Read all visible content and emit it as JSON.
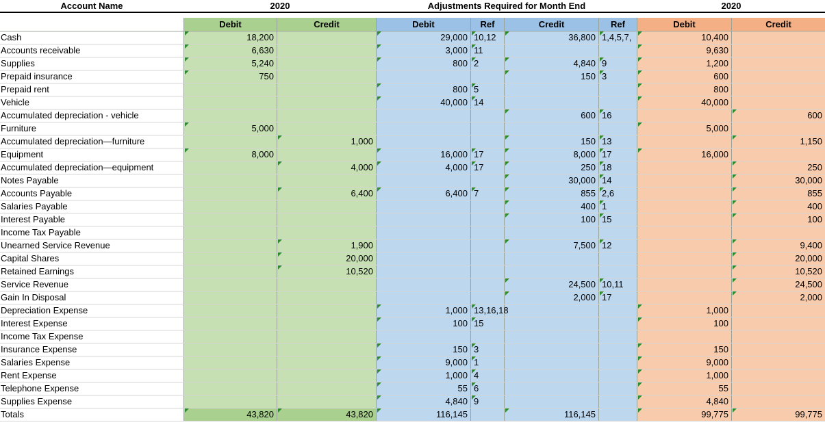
{
  "headers": {
    "account_name": "Account Name",
    "year_a": "2020",
    "adjustments": "Adjustments Required for Month End",
    "year_b": "2020"
  },
  "subheaders": {
    "debit": "Debit",
    "credit": "Credit",
    "ref": "Ref"
  },
  "colors": {
    "green": "#c6e0b4",
    "green_total": "#a9d08e",
    "green_header": "#a9d08e",
    "blue": "#bdd7ee",
    "blue_header": "#9bc2e6",
    "orange": "#f8cbad",
    "orange_header": "#f4b084"
  },
  "rows": [
    {
      "name": "Cash",
      "td": "18,200",
      "tc": "",
      "ad": "29,000",
      "adr": "10,12",
      "ac": "36,800",
      "acr": "1,4,5,7,",
      "fd": "10,400",
      "fc": ""
    },
    {
      "name": "Accounts receivable",
      "td": "6,630",
      "tc": "",
      "ad": "3,000",
      "adr": "11",
      "ac": "",
      "acr": "",
      "fd": "9,630",
      "fc": ""
    },
    {
      "name": "Supplies",
      "td": "5,240",
      "tc": "",
      "ad": "800",
      "adr": "2",
      "ac": "4,840",
      "acr": "9",
      "fd": "1,200",
      "fc": ""
    },
    {
      "name": "Prepaid insurance",
      "td": "750",
      "tc": "",
      "ad": "",
      "adr": "",
      "ac": "150",
      "acr": "3",
      "fd": "600",
      "fc": ""
    },
    {
      "name": "Prepaid rent",
      "td": "",
      "tc": "",
      "ad": "800",
      "adr": "5",
      "ac": "",
      "acr": "",
      "fd": "800",
      "fc": ""
    },
    {
      "name": "Vehicle",
      "td": "",
      "tc": "",
      "ad": "40,000",
      "adr": "14",
      "ac": "",
      "acr": "",
      "fd": "40,000",
      "fc": ""
    },
    {
      "name": "Accumulated depreciation - vehicle",
      "td": "",
      "tc": "",
      "ad": "",
      "adr": "",
      "ac": "600",
      "acr": "16",
      "fd": "",
      "fc": "600"
    },
    {
      "name": "Furniture",
      "td": "5,000",
      "tc": "",
      "ad": "",
      "adr": "",
      "ac": "",
      "acr": "",
      "fd": "5,000",
      "fc": ""
    },
    {
      "name": "Accumulated depreciation—furniture",
      "td": "",
      "tc": "1,000",
      "ad": "",
      "adr": "",
      "ac": "150",
      "acr": "13",
      "fd": "",
      "fc": "1,150"
    },
    {
      "name": "Equipment",
      "td": "8,000",
      "tc": "",
      "ad": "16,000",
      "adr": "17",
      "ac": "8,000",
      "acr": "17",
      "fd": "16,000",
      "fc": ""
    },
    {
      "name": "Accumulated depreciation—equipment",
      "td": "",
      "tc": "4,000",
      "ad": "4,000",
      "adr": "17",
      "ac": "250",
      "acr": "18",
      "fd": "",
      "fc": "250"
    },
    {
      "name": "Notes Payable",
      "td": "",
      "tc": "",
      "ad": "",
      "adr": "",
      "ac": "30,000",
      "acr": "14",
      "fd": "",
      "fc": "30,000"
    },
    {
      "name": "Accounts Payable",
      "td": "",
      "tc": "6,400",
      "ad": "6,400",
      "adr": "7",
      "ac": "855",
      "acr": "2,6",
      "fd": "",
      "fc": "855"
    },
    {
      "name": "Salaries Payable",
      "td": "",
      "tc": "",
      "ad": "",
      "adr": "",
      "ac": "400",
      "acr": "1",
      "fd": "",
      "fc": "400"
    },
    {
      "name": "Interest Payable",
      "td": "",
      "tc": "",
      "ad": "",
      "adr": "",
      "ac": "100",
      "acr": "15",
      "fd": "",
      "fc": "100"
    },
    {
      "name": "Income Tax Payable",
      "td": "",
      "tc": "",
      "ad": "",
      "adr": "",
      "ac": "",
      "acr": "",
      "fd": "",
      "fc": ""
    },
    {
      "name": "Unearned Service Revenue",
      "td": "",
      "tc": "1,900",
      "ad": "",
      "adr": "",
      "ac": "7,500",
      "acr": "12",
      "fd": "",
      "fc": "9,400"
    },
    {
      "name": "Capital Shares",
      "td": "",
      "tc": "20,000",
      "ad": "",
      "adr": "",
      "ac": "",
      "acr": "",
      "fd": "",
      "fc": "20,000"
    },
    {
      "name": "Retained Earnings",
      "td": "",
      "tc": "10,520",
      "ad": "",
      "adr": "",
      "ac": "",
      "acr": "",
      "fd": "",
      "fc": "10,520"
    },
    {
      "name": "Service Revenue",
      "td": "",
      "tc": "",
      "ad": "",
      "adr": "",
      "ac": "24,500",
      "acr": "10,11",
      "fd": "",
      "fc": "24,500"
    },
    {
      "name": "Gain In Disposal",
      "td": "",
      "tc": "",
      "ad": "",
      "adr": "",
      "ac": "2,000",
      "acr": "17",
      "fd": "",
      "fc": "2,000"
    },
    {
      "name": "Depreciation Expense",
      "td": "",
      "tc": "",
      "ad": "1,000",
      "adr": "13,16,18",
      "ac": "",
      "acr": "",
      "fd": "1,000",
      "fc": ""
    },
    {
      "name": "Interest Expense",
      "td": "",
      "tc": "",
      "ad": "100",
      "adr": "15",
      "ac": "",
      "acr": "",
      "fd": "100",
      "fc": ""
    },
    {
      "name": "Income Tax Expense",
      "td": "",
      "tc": "",
      "ad": "",
      "adr": "",
      "ac": "",
      "acr": "",
      "fd": "",
      "fc": ""
    },
    {
      "name": "Insurance Expense",
      "td": "",
      "tc": "",
      "ad": "150",
      "adr": "3",
      "ac": "",
      "acr": "",
      "fd": "150",
      "fc": ""
    },
    {
      "name": "Salaries Expense",
      "td": "",
      "tc": "",
      "ad": "9,000",
      "adr": "1",
      "ac": "",
      "acr": "",
      "fd": "9,000",
      "fc": ""
    },
    {
      "name": "Rent Expense",
      "td": "",
      "tc": "",
      "ad": "1,000",
      "adr": "4",
      "ac": "",
      "acr": "",
      "fd": "1,000",
      "fc": ""
    },
    {
      "name": "Telephone Expense",
      "td": "",
      "tc": "",
      "ad": "55",
      "adr": "6",
      "ac": "",
      "acr": "",
      "fd": "55",
      "fc": ""
    },
    {
      "name": "Supplies Expense",
      "td": "",
      "tc": "",
      "ad": "4,840",
      "adr": "9",
      "ac": "",
      "acr": "",
      "fd": "4,840",
      "fc": ""
    },
    {
      "name": "Totals",
      "td": "43,820",
      "tc": "43,820",
      "ad": "116,145",
      "adr": "",
      "ac": "116,145",
      "acr": "",
      "fd": "99,775",
      "fc": "99,775"
    }
  ]
}
